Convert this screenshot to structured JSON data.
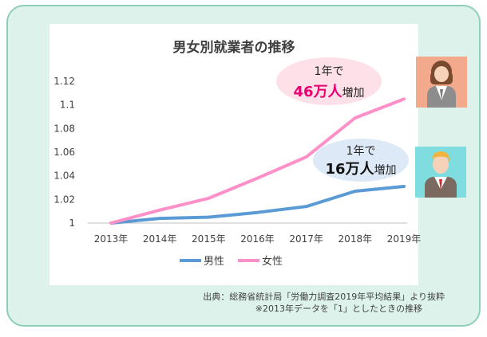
{
  "chart_data": {
    "type": "line",
    "title": "男女別就業者の推移",
    "categories": [
      "2013年",
      "2014年",
      "2015年",
      "2016年",
      "2017年",
      "2018年",
      "2019年"
    ],
    "series": [
      {
        "name": "男性",
        "color": "#5b9bd5",
        "values": [
          1.0,
          1.004,
          1.005,
          1.009,
          1.014,
          1.027,
          1.031
        ]
      },
      {
        "name": "女性",
        "color": "#ff8fc8",
        "values": [
          1.0,
          1.011,
          1.021,
          1.038,
          1.056,
          1.089,
          1.105
        ]
      }
    ],
    "yticks": [
      "1.12",
      "1.1",
      "1.08",
      "1.06",
      "1.04",
      "1.02",
      "1"
    ],
    "ylim": [
      1.0,
      1.12
    ],
    "grid": false,
    "legend": "bottom"
  },
  "annotations": {
    "female": {
      "line1": "1年で",
      "amount": "46万人",
      "suffix": "増加",
      "bubble_color": "#fde0e8",
      "amount_color": "#e8006e"
    },
    "male": {
      "line1": "1年で",
      "amount": "16万人",
      "suffix": "増加",
      "bubble_color": "#dde9f7",
      "amount_color": "#111111"
    }
  },
  "source": {
    "line1": "出典：総務省統計局「労働力調査2019年平均結果」より抜粋",
    "line2": "※2013年データを「1」としたときの推移"
  },
  "icons": [
    "woman-avatar-icon",
    "man-avatar-icon"
  ]
}
